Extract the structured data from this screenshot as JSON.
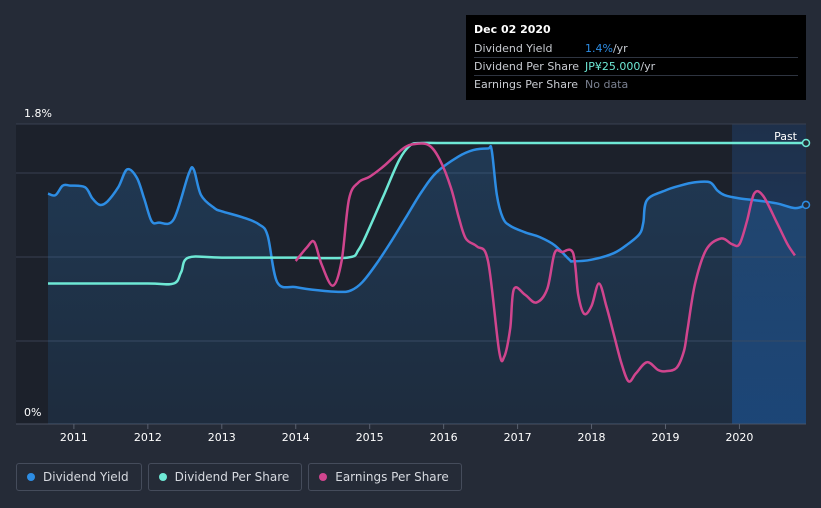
{
  "tooltip": {
    "date": "Dec 02 2020",
    "rows": [
      {
        "label": "Dividend Yield",
        "value": "1.4%",
        "unit": " /yr",
        "color": "#2d8de4"
      },
      {
        "label": "Dividend Per Share",
        "value": "JP¥25.000",
        "unit": " /yr",
        "color": "#6ee8d5"
      },
      {
        "label": "Earnings Per Share",
        "value": "No data",
        "unit": "",
        "color": "#7a8090"
      }
    ]
  },
  "past_label": "Past",
  "legend": [
    {
      "label": "Dividend Yield",
      "color": "#2d8de4"
    },
    {
      "label": "Dividend Per Share",
      "color": "#6ee8d5"
    },
    {
      "label": "Earnings Per Share",
      "color": "#d0458e"
    }
  ],
  "chart_data": {
    "type": "line",
    "y_tick_labels": [
      "1.8%",
      "0%"
    ],
    "ylim": [
      0,
      1.8
    ],
    "xlim": [
      2010.65,
      2020.9
    ],
    "x_ticks": [
      2011,
      2012,
      2013,
      2014,
      2015,
      2016,
      2017,
      2018,
      2019,
      2020
    ],
    "past_region_start": 2019.9,
    "series": [
      {
        "name": "Dividend Yield",
        "color": "#2d8de4",
        "unit": "%",
        "points": [
          [
            2010.65,
            1.43
          ],
          [
            2010.75,
            1.42
          ],
          [
            2010.85,
            1.48
          ],
          [
            2010.95,
            1.48
          ],
          [
            2011.15,
            1.47
          ],
          [
            2011.25,
            1.4
          ],
          [
            2011.35,
            1.36
          ],
          [
            2011.45,
            1.38
          ],
          [
            2011.6,
            1.47
          ],
          [
            2011.72,
            1.58
          ],
          [
            2011.85,
            1.53
          ],
          [
            2011.95,
            1.4
          ],
          [
            2012.05,
            1.26
          ],
          [
            2012.15,
            1.25
          ],
          [
            2012.35,
            1.27
          ],
          [
            2012.55,
            1.55
          ],
          [
            2012.62,
            1.58
          ],
          [
            2012.72,
            1.42
          ],
          [
            2012.9,
            1.34
          ],
          [
            2013.0,
            1.32
          ],
          [
            2013.3,
            1.28
          ],
          [
            2013.5,
            1.24
          ],
          [
            2013.62,
            1.17
          ],
          [
            2013.75,
            0.88
          ],
          [
            2014.0,
            0.85
          ],
          [
            2014.3,
            0.83
          ],
          [
            2014.6,
            0.82
          ],
          [
            2014.75,
            0.83
          ],
          [
            2014.9,
            0.88
          ],
          [
            2015.1,
            1.0
          ],
          [
            2015.3,
            1.14
          ],
          [
            2015.5,
            1.29
          ],
          [
            2015.7,
            1.44
          ],
          [
            2015.9,
            1.56
          ],
          [
            2016.2,
            1.66
          ],
          [
            2016.4,
            1.7
          ],
          [
            2016.6,
            1.71
          ],
          [
            2016.65,
            1.7
          ],
          [
            2016.72,
            1.42
          ],
          [
            2016.8,
            1.28
          ],
          [
            2016.9,
            1.23
          ],
          [
            2017.1,
            1.19
          ],
          [
            2017.3,
            1.16
          ],
          [
            2017.5,
            1.11
          ],
          [
            2017.7,
            1.02
          ],
          [
            2017.75,
            1.01
          ],
          [
            2018.0,
            1.02
          ],
          [
            2018.3,
            1.06
          ],
          [
            2018.5,
            1.12
          ],
          [
            2018.65,
            1.18
          ],
          [
            2018.7,
            1.25
          ],
          [
            2018.75,
            1.39
          ],
          [
            2019.0,
            1.45
          ],
          [
            2019.2,
            1.48
          ],
          [
            2019.4,
            1.5
          ],
          [
            2019.6,
            1.5
          ],
          [
            2019.7,
            1.45
          ],
          [
            2019.8,
            1.42
          ],
          [
            2020.0,
            1.4
          ],
          [
            2020.2,
            1.39
          ],
          [
            2020.5,
            1.37
          ],
          [
            2020.75,
            1.34
          ],
          [
            2020.9,
            1.36
          ]
        ]
      },
      {
        "name": "Dividend Per Share",
        "color": "#6ee8d5",
        "unit": "JP¥",
        "points": [
          [
            2010.65,
            12.5
          ],
          [
            2011.0,
            12.5
          ],
          [
            2012.0,
            12.5
          ],
          [
            2012.35,
            12.5
          ],
          [
            2012.45,
            13.5
          ],
          [
            2012.55,
            14.8
          ],
          [
            2013.0,
            14.8
          ],
          [
            2014.0,
            14.8
          ],
          [
            2014.7,
            14.8
          ],
          [
            2014.85,
            15.5
          ],
          [
            2015.0,
            17.5
          ],
          [
            2015.2,
            20.5
          ],
          [
            2015.4,
            23.5
          ],
          [
            2015.55,
            24.8
          ],
          [
            2015.7,
            25.0
          ],
          [
            2016.0,
            25.0
          ],
          [
            2017.0,
            25.0
          ],
          [
            2018.0,
            25.0
          ],
          [
            2019.0,
            25.0
          ],
          [
            2020.0,
            25.0
          ],
          [
            2020.9,
            25.0
          ]
        ]
      },
      {
        "name": "Earnings Per Share",
        "color": "#d0458e",
        "unit": "JP¥",
        "points": [
          [
            2014.0,
            14.5
          ],
          [
            2014.15,
            15.7
          ],
          [
            2014.25,
            16.2
          ],
          [
            2014.35,
            14.2
          ],
          [
            2014.5,
            12.3
          ],
          [
            2014.62,
            14.5
          ],
          [
            2014.72,
            20.0
          ],
          [
            2014.85,
            21.5
          ],
          [
            2015.0,
            22.0
          ],
          [
            2015.2,
            23.0
          ],
          [
            2015.45,
            24.5
          ],
          [
            2015.6,
            24.9
          ],
          [
            2015.8,
            24.8
          ],
          [
            2015.95,
            23.5
          ],
          [
            2016.1,
            21.0
          ],
          [
            2016.2,
            18.5
          ],
          [
            2016.3,
            16.5
          ],
          [
            2016.45,
            15.8
          ],
          [
            2016.6,
            14.5
          ],
          [
            2016.75,
            6.5
          ],
          [
            2016.82,
            6.0
          ],
          [
            2016.9,
            8.5
          ],
          [
            2016.95,
            12.0
          ],
          [
            2017.1,
            11.5
          ],
          [
            2017.25,
            10.8
          ],
          [
            2017.4,
            12.0
          ],
          [
            2017.5,
            15.2
          ],
          [
            2017.6,
            15.3
          ],
          [
            2017.75,
            15.2
          ],
          [
            2017.82,
            11.5
          ],
          [
            2017.9,
            9.8
          ],
          [
            2018.0,
            10.5
          ],
          [
            2018.1,
            12.5
          ],
          [
            2018.2,
            10.5
          ],
          [
            2018.3,
            8.0
          ],
          [
            2018.4,
            5.5
          ],
          [
            2018.5,
            3.8
          ],
          [
            2018.6,
            4.5
          ],
          [
            2018.75,
            5.5
          ],
          [
            2018.9,
            4.8
          ],
          [
            2019.0,
            4.7
          ],
          [
            2019.15,
            5.0
          ],
          [
            2019.25,
            6.5
          ],
          [
            2019.3,
            8.5
          ],
          [
            2019.4,
            12.5
          ],
          [
            2019.55,
            15.5
          ],
          [
            2019.75,
            16.5
          ],
          [
            2019.9,
            16.0
          ],
          [
            2020.0,
            16.0
          ],
          [
            2020.1,
            18.0
          ],
          [
            2020.2,
            20.5
          ],
          [
            2020.32,
            20.3
          ],
          [
            2020.5,
            18.0
          ],
          [
            2020.65,
            16.0
          ],
          [
            2020.75,
            15.0
          ]
        ]
      }
    ]
  }
}
